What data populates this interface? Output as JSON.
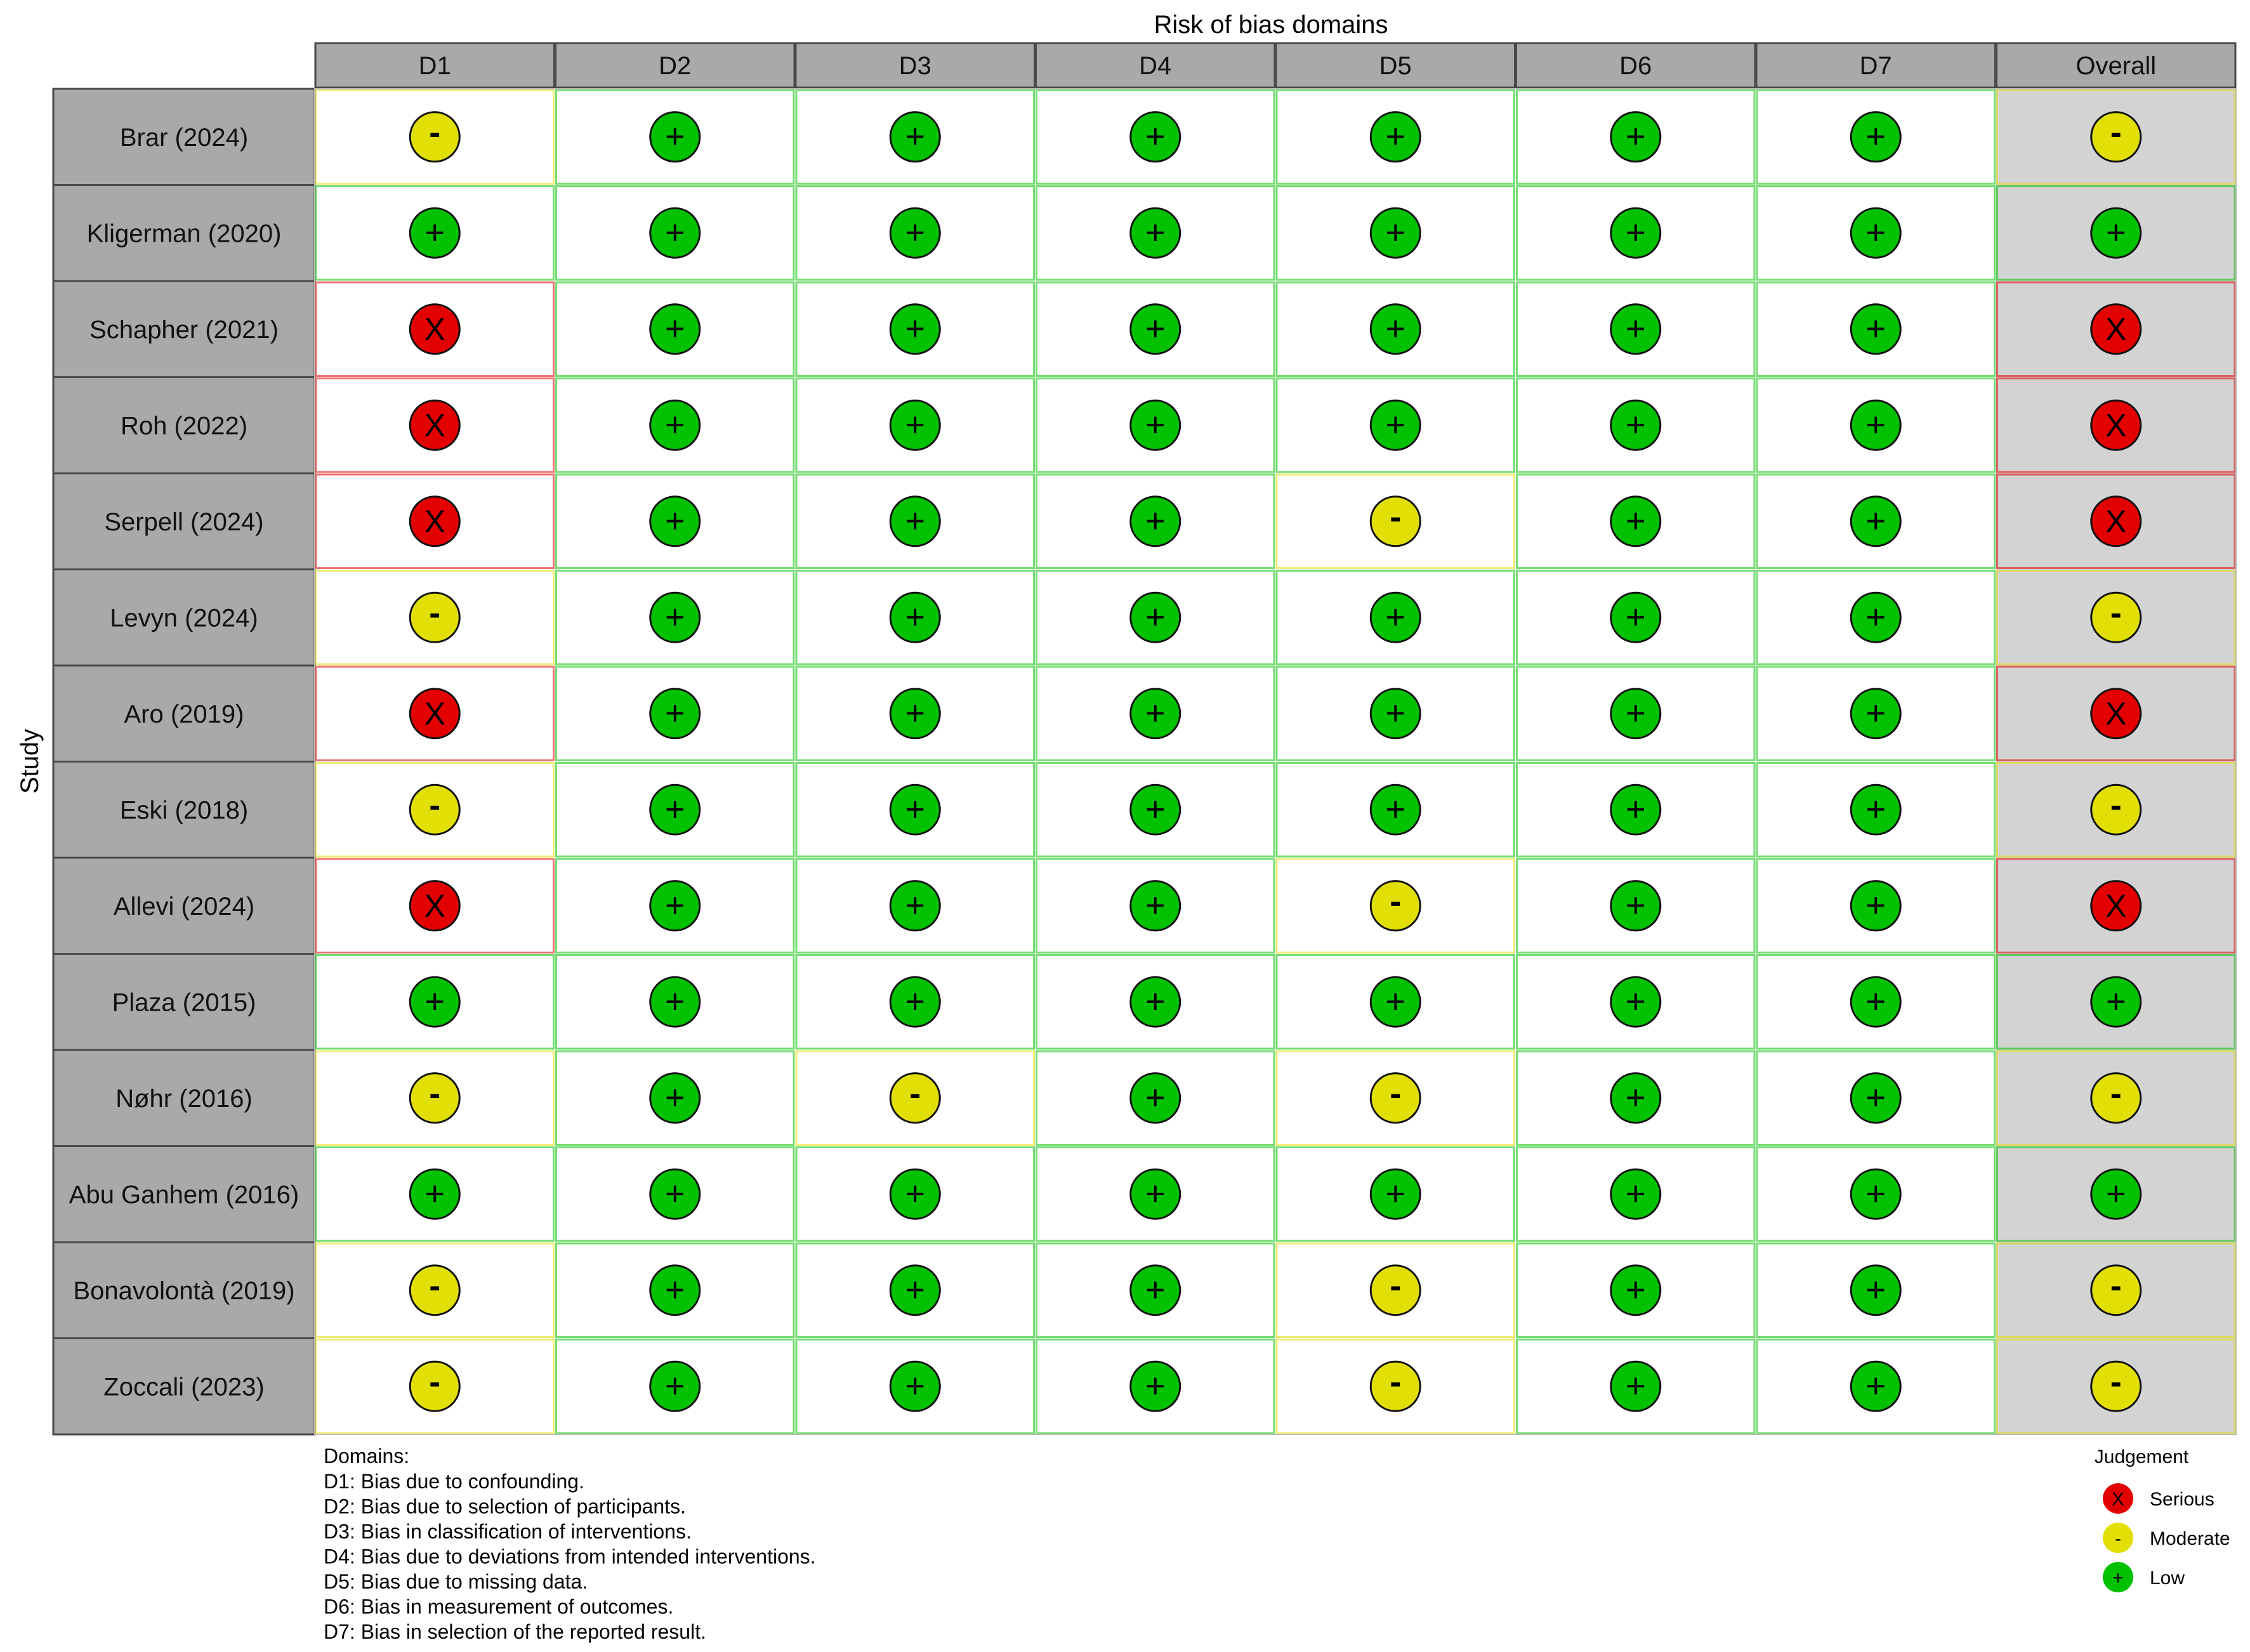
{
  "chart_data": {
    "type": "table",
    "title": "Risk of bias domains",
    "ylabel": "Study",
    "columns": [
      "D1",
      "D2",
      "D3",
      "D4",
      "D5",
      "D6",
      "D7",
      "Overall"
    ],
    "rows": [
      {
        "study": "Brar (2024)",
        "judgements": [
          "Moderate",
          "Low",
          "Low",
          "Low",
          "Low",
          "Low",
          "Low",
          "Moderate"
        ]
      },
      {
        "study": "Kligerman  (2020)",
        "judgements": [
          "Low",
          "Low",
          "Low",
          "Low",
          "Low",
          "Low",
          "Low",
          "Low"
        ]
      },
      {
        "study": "Schapher (2021)",
        "judgements": [
          "Serious",
          "Low",
          "Low",
          "Low",
          "Low",
          "Low",
          "Low",
          "Serious"
        ]
      },
      {
        "study": "Roh (2022)",
        "judgements": [
          "Serious",
          "Low",
          "Low",
          "Low",
          "Low",
          "Low",
          "Low",
          "Serious"
        ]
      },
      {
        "study": "Serpell  (2024)",
        "judgements": [
          "Serious",
          "Low",
          "Low",
          "Low",
          "Moderate",
          "Low",
          "Low",
          "Serious"
        ]
      },
      {
        "study": "Levyn (2024)",
        "judgements": [
          "Moderate",
          "Low",
          "Low",
          "Low",
          "Low",
          "Low",
          "Low",
          "Moderate"
        ]
      },
      {
        "study": "Aro (2019)",
        "judgements": [
          "Serious",
          "Low",
          "Low",
          "Low",
          "Low",
          "Low",
          "Low",
          "Serious"
        ]
      },
      {
        "study": "Eski (2018)",
        "judgements": [
          "Moderate",
          "Low",
          "Low",
          "Low",
          "Low",
          "Low",
          "Low",
          "Moderate"
        ]
      },
      {
        "study": "Allevi (2024)",
        "judgements": [
          "Serious",
          "Low",
          "Low",
          "Low",
          "Moderate",
          "Low",
          "Low",
          "Serious"
        ]
      },
      {
        "study": "Plaza  (2015)",
        "judgements": [
          "Low",
          "Low",
          "Low",
          "Low",
          "Low",
          "Low",
          "Low",
          "Low"
        ]
      },
      {
        "study": "Nøhr (2016)",
        "judgements": [
          "Moderate",
          "Low",
          "Moderate",
          "Low",
          "Moderate",
          "Low",
          "Low",
          "Moderate"
        ]
      },
      {
        "study": "Abu Ganhem (2016)",
        "judgements": [
          "Low",
          "Low",
          "Low",
          "Low",
          "Low",
          "Low",
          "Low",
          "Low"
        ]
      },
      {
        "study": "Bonavolontà (2019)",
        "judgements": [
          "Moderate",
          "Low",
          "Low",
          "Low",
          "Moderate",
          "Low",
          "Low",
          "Moderate"
        ]
      },
      {
        "study": "Zoccali (2023)",
        "judgements": [
          "Moderate",
          "Low",
          "Low",
          "Low",
          "Moderate",
          "Low",
          "Low",
          "Moderate"
        ]
      }
    ],
    "domains_title": "Domains:",
    "domains": [
      "D1: Bias due to confounding.",
      "D2: Bias due to selection of participants.",
      "D3: Bias in classification of interventions.",
      "D4: Bias due to deviations from intended interventions.",
      "D5: Bias due to missing data.",
      "D6: Bias in measurement of outcomes.",
      "D7: Bias in selection of the reported result."
    ],
    "legend": {
      "title": "Judgement",
      "placement": "bottom-right",
      "items": [
        {
          "label": "Serious",
          "symbol": "X",
          "color": "#e20000"
        },
        {
          "label": "Moderate",
          "symbol": "-",
          "color": "#e2df07"
        },
        {
          "label": "Low",
          "symbol": "+",
          "color": "#02c100"
        }
      ]
    },
    "colors": {
      "Serious": "#e20000",
      "Moderate": "#e2df07",
      "Low": "#02c100",
      "header_bg": "#a9a9a9",
      "overall_bg": "#d3d3d3"
    },
    "symbols": {
      "Serious": "X",
      "Moderate": "-",
      "Low": "+"
    }
  }
}
